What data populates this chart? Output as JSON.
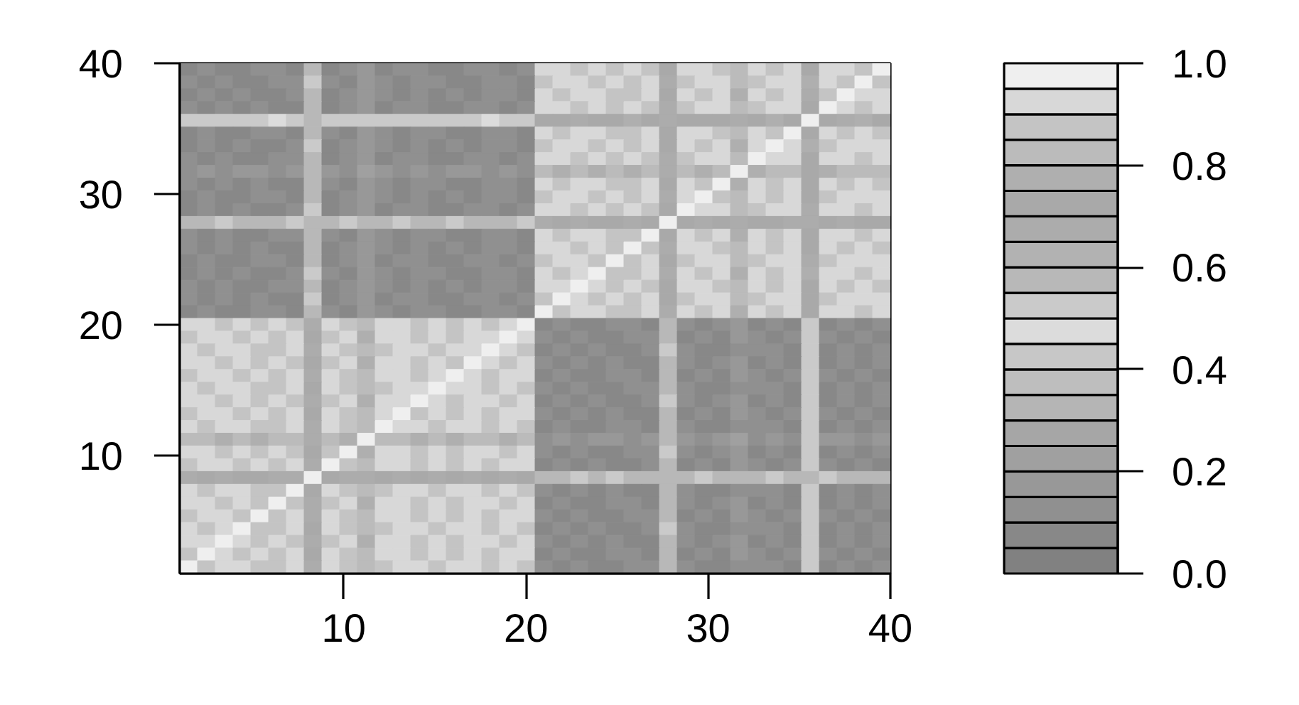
{
  "chart_data": {
    "type": "heatmap",
    "xlim": [
      1,
      40
    ],
    "ylim": [
      1,
      40
    ],
    "xticks": [
      10,
      20,
      30,
      40
    ],
    "yticks": [
      10,
      20,
      30,
      40
    ],
    "clim": [
      0,
      1
    ],
    "cticks": [
      {
        "value": 0,
        "label": "0.0"
      },
      0.2,
      0.4,
      0.6,
      0.8,
      {
        "value": 1,
        "label": "1.0"
      }
    ],
    "colors": [
      "#818181",
      "#888888",
      "#909090",
      "#989898",
      "#a0a0a0",
      "#a6a6a6",
      "#b5b5b5",
      "#bebebe",
      "#c7c7c7",
      "#dcdcdc",
      "#cacaca",
      "#b8b8b8",
      "#b2b2b2",
      "#acacac",
      "#a9a9a9",
      "#afafaf",
      "#bbbbbb",
      "#c4c4c4",
      "#d8d8d8",
      "#efefef"
    ],
    "cells": [
      [
        0.08,
        0.12,
        0.09,
        0.06,
        0.11,
        0.1,
        0.07,
        0.56,
        0.09,
        0.13,
        0.17,
        0.08,
        0.14,
        0.11,
        0.06,
        0.09,
        0.12,
        0.1,
        0.07,
        0.11,
        0.9,
        0.93,
        0.88,
        0.91,
        0.87,
        0.92,
        0.89,
        0.71,
        0.9,
        0.92,
        0.88,
        0.8,
        0.91,
        0.87,
        0.93,
        0.73,
        0.9,
        0.93,
        0.88,
        1
      ],
      [
        0.11,
        0.07,
        0.13,
        0.09,
        0.05,
        0.12,
        0.1,
        0.54,
        0.12,
        0.08,
        0.16,
        0.11,
        0.07,
        0.1,
        0.13,
        0.06,
        0.09,
        0.11,
        0.14,
        0.08,
        0.88,
        0.9,
        0.94,
        0.87,
        0.91,
        0.89,
        0.93,
        0.69,
        0.88,
        0.91,
        0.93,
        0.82,
        0.89,
        0.92,
        0.9,
        0.75,
        0.92,
        0.89,
        1,
        0.87
      ],
      [
        0.06,
        0.1,
        0.08,
        0.14,
        0.09,
        0.07,
        0.12,
        0.57,
        0.07,
        0.1,
        0.18,
        0.13,
        0.09,
        0.12,
        0.08,
        0.11,
        0.05,
        0.1,
        0.12,
        0.09,
        0.92,
        0.87,
        0.9,
        0.93,
        0.89,
        0.86,
        0.91,
        0.72,
        0.92,
        0.87,
        0.9,
        0.79,
        0.93,
        0.88,
        0.91,
        0.7,
        0.88,
        1,
        0.9,
        0.93
      ],
      [
        0.13,
        0.09,
        0.11,
        0.07,
        0.1,
        0.06,
        0.09,
        0.55,
        0.09,
        0.13,
        0.17,
        0.08,
        0.14,
        0.11,
        0.06,
        0.09,
        0.12,
        0.1,
        0.07,
        0.11,
        0.9,
        0.93,
        0.88,
        0.91,
        0.87,
        0.92,
        0.89,
        0.7,
        0.88,
        0.91,
        0.93,
        0.82,
        0.89,
        0.92,
        0.9,
        0.74,
        1,
        0.93,
        0.88,
        0.91
      ],
      [
        0.52,
        0.5,
        0.54,
        0.51,
        0.53,
        0.49,
        0.52,
        0.55,
        0.51,
        0.53,
        0.5,
        0.52,
        0.54,
        0.5,
        0.51,
        0.53,
        0.52,
        0.49,
        0.51,
        0.53,
        0.72,
        0.74,
        0.7,
        0.73,
        0.71,
        0.75,
        0.72,
        0.7,
        0.73,
        0.71,
        0.74,
        0.7,
        0.72,
        0.75,
        0.71,
        1,
        0.74,
        0.7,
        0.75,
        0.73
      ],
      [
        0.08,
        0.12,
        0.09,
        0.06,
        0.11,
        0.1,
        0.07,
        0.58,
        0.12,
        0.08,
        0.16,
        0.11,
        0.07,
        0.1,
        0.13,
        0.06,
        0.09,
        0.11,
        0.14,
        0.08,
        0.92,
        0.87,
        0.9,
        0.93,
        0.89,
        0.86,
        0.91,
        0.71,
        0.9,
        0.92,
        0.88,
        0.8,
        0.91,
        0.87,
        1,
        0.72,
        0.92,
        0.89,
        0.91,
        0.87
      ],
      [
        0.06,
        0.1,
        0.08,
        0.14,
        0.09,
        0.07,
        0.12,
        0.53,
        0.07,
        0.1,
        0.18,
        0.13,
        0.09,
        0.12,
        0.08,
        0.11,
        0.05,
        0.1,
        0.12,
        0.09,
        0.88,
        0.9,
        0.94,
        0.87,
        0.91,
        0.89,
        0.93,
        0.73,
        0.92,
        0.87,
        0.9,
        0.79,
        0.93,
        1,
        0.91,
        0.75,
        0.88,
        0.91,
        0.9,
        0.93
      ],
      [
        0.11,
        0.07,
        0.13,
        0.09,
        0.05,
        0.12,
        0.1,
        0.56,
        0.09,
        0.13,
        0.17,
        0.08,
        0.14,
        0.11,
        0.06,
        0.09,
        0.12,
        0.1,
        0.07,
        0.11,
        0.9,
        0.93,
        0.88,
        0.91,
        0.87,
        0.92,
        0.89,
        0.68,
        0.88,
        0.91,
        0.93,
        0.82,
        1,
        0.92,
        0.9,
        0.71,
        0.9,
        0.93,
        0.88,
        0.91
      ],
      [
        0.15,
        0.18,
        0.14,
        0.17,
        0.16,
        0.13,
        0.18,
        0.55,
        0.16,
        0.14,
        0.2,
        0.17,
        0.15,
        0.18,
        0.13,
        0.16,
        0.17,
        0.14,
        0.19,
        0.15,
        0.8,
        0.78,
        0.82,
        0.79,
        0.81,
        0.77,
        0.8,
        0.7,
        0.81,
        0.79,
        0.8,
        1,
        0.78,
        0.82,
        0.8,
        0.71,
        0.79,
        0.81,
        0.8,
        0.82
      ],
      [
        0.13,
        0.09,
        0.11,
        0.07,
        0.1,
        0.06,
        0.09,
        0.55,
        0.12,
        0.08,
        0.16,
        0.11,
        0.07,
        0.1,
        0.13,
        0.06,
        0.09,
        0.11,
        0.14,
        0.08,
        0.92,
        0.87,
        0.9,
        0.93,
        0.89,
        0.86,
        0.91,
        0.72,
        0.92,
        0.87,
        1,
        0.79,
        0.93,
        0.88,
        0.91,
        0.73,
        0.92,
        0.89,
        0.91,
        0.87
      ],
      [
        0.08,
        0.12,
        0.09,
        0.06,
        0.11,
        0.1,
        0.07,
        0.57,
        0.07,
        0.1,
        0.18,
        0.13,
        0.09,
        0.12,
        0.08,
        0.11,
        0.05,
        0.1,
        0.12,
        0.09,
        0.88,
        0.9,
        0.94,
        0.87,
        0.91,
        0.89,
        0.93,
        0.7,
        0.9,
        1,
        0.88,
        0.8,
        0.91,
        0.87,
        0.93,
        0.74,
        0.88,
        0.91,
        0.9,
        0.93
      ],
      [
        0.06,
        0.1,
        0.08,
        0.14,
        0.09,
        0.07,
        0.12,
        0.54,
        0.09,
        0.13,
        0.17,
        0.08,
        0.14,
        0.11,
        0.06,
        0.09,
        0.12,
        0.1,
        0.07,
        0.11,
        0.9,
        0.93,
        0.88,
        0.91,
        0.87,
        0.92,
        0.89,
        0.71,
        1,
        0.91,
        0.93,
        0.82,
        0.89,
        0.92,
        0.9,
        0.7,
        0.9,
        0.93,
        0.88,
        0.91
      ],
      [
        0.55,
        0.57,
        0.54,
        0.56,
        0.58,
        0.55,
        0.53,
        0.6,
        0.56,
        0.54,
        0.57,
        0.55,
        0.53,
        0.58,
        0.56,
        0.54,
        0.57,
        0.55,
        0.56,
        0.54,
        0.7,
        0.72,
        0.69,
        0.71,
        0.73,
        0.7,
        0.72,
        1,
        0.71,
        0.69,
        0.72,
        0.7,
        0.73,
        0.71,
        0.7,
        0.7,
        0.72,
        0.7,
        0.71,
        0.73
      ],
      [
        0.11,
        0.07,
        0.13,
        0.09,
        0.05,
        0.12,
        0.1,
        0.56,
        0.12,
        0.08,
        0.16,
        0.11,
        0.07,
        0.1,
        0.13,
        0.06,
        0.09,
        0.11,
        0.14,
        0.08,
        0.92,
        0.87,
        0.9,
        0.93,
        0.89,
        0.86,
        1,
        0.72,
        0.92,
        0.87,
        0.9,
        0.79,
        0.93,
        0.88,
        0.91,
        0.72,
        0.9,
        0.93,
        0.88,
        0.91
      ],
      [
        0.13,
        0.09,
        0.11,
        0.07,
        0.1,
        0.06,
        0.09,
        0.58,
        0.07,
        0.1,
        0.18,
        0.13,
        0.09,
        0.12,
        0.08,
        0.11,
        0.05,
        0.1,
        0.12,
        0.09,
        0.9,
        0.93,
        0.88,
        0.91,
        0.87,
        1,
        0.89,
        0.69,
        0.9,
        0.92,
        0.88,
        0.8,
        0.91,
        0.87,
        0.93,
        0.74,
        0.92,
        0.89,
        0.91,
        0.87
      ],
      [
        0.08,
        0.12,
        0.09,
        0.06,
        0.11,
        0.1,
        0.07,
        0.55,
        0.09,
        0.13,
        0.17,
        0.08,
        0.14,
        0.11,
        0.06,
        0.09,
        0.12,
        0.1,
        0.07,
        0.11,
        0.88,
        0.9,
        0.94,
        0.87,
        1,
        0.89,
        0.93,
        0.73,
        0.88,
        0.91,
        0.93,
        0.82,
        0.89,
        0.92,
        0.9,
        0.7,
        0.88,
        0.91,
        0.9,
        0.93
      ],
      [
        0.06,
        0.1,
        0.08,
        0.14,
        0.09,
        0.07,
        0.12,
        0.53,
        0.12,
        0.08,
        0.16,
        0.11,
        0.07,
        0.1,
        0.13,
        0.06,
        0.09,
        0.11,
        0.14,
        0.08,
        0.92,
        0.87,
        0.9,
        1,
        0.89,
        0.86,
        0.91,
        0.7,
        0.92,
        0.87,
        0.9,
        0.79,
        0.93,
        0.88,
        0.91,
        0.75,
        0.9,
        0.93,
        0.88,
        0.91
      ],
      [
        0.11,
        0.07,
        0.13,
        0.09,
        0.05,
        0.12,
        0.1,
        0.57,
        0.07,
        0.1,
        0.18,
        0.13,
        0.09,
        0.12,
        0.08,
        0.11,
        0.05,
        0.1,
        0.12,
        0.09,
        0.9,
        0.93,
        1,
        0.91,
        0.87,
        0.92,
        0.89,
        0.71,
        0.9,
        0.92,
        0.88,
        0.8,
        0.91,
        0.87,
        0.93,
        0.72,
        0.92,
        0.89,
        0.91,
        0.87
      ],
      [
        0.13,
        0.09,
        0.11,
        0.07,
        0.1,
        0.06,
        0.09,
        0.54,
        0.09,
        0.13,
        0.17,
        0.08,
        0.14,
        0.11,
        0.06,
        0.09,
        0.12,
        0.1,
        0.07,
        0.11,
        0.88,
        1,
        0.94,
        0.87,
        0.91,
        0.89,
        0.93,
        0.72,
        0.88,
        0.91,
        0.93,
        0.82,
        0.89,
        0.92,
        0.9,
        0.73,
        0.88,
        0.91,
        0.9,
        0.93
      ],
      [
        0.08,
        0.12,
        0.09,
        0.06,
        0.11,
        0.1,
        0.07,
        0.56,
        0.12,
        0.08,
        0.16,
        0.11,
        0.07,
        0.1,
        0.13,
        0.06,
        0.09,
        0.11,
        0.14,
        0.08,
        1,
        0.87,
        0.9,
        0.93,
        0.89,
        0.86,
        0.91,
        0.7,
        0.92,
        0.87,
        0.9,
        0.79,
        0.93,
        0.88,
        0.91,
        0.71,
        0.9,
        0.93,
        0.88,
        0.91
      ],
      [
        0.9,
        0.93,
        0.88,
        0.91,
        0.87,
        0.92,
        0.89,
        0.7,
        0.91,
        0.88,
        0.81,
        0.93,
        0.9,
        0.87,
        0.92,
        0.89,
        0.94,
        0.88,
        0.9,
        1,
        0.08,
        0.12,
        0.09,
        0.06,
        0.11,
        0.1,
        0.07,
        0.55,
        0.1,
        0.07,
        0.12,
        0.16,
        0.09,
        0.11,
        0.08,
        0.52,
        0.09,
        0.12,
        0.07,
        0.1
      ],
      [
        0.88,
        0.9,
        0.94,
        0.87,
        0.91,
        0.89,
        0.93,
        0.72,
        0.87,
        0.92,
        0.79,
        0.9,
        0.93,
        0.88,
        0.91,
        0.86,
        0.9,
        0.92,
        1,
        0.93,
        0.11,
        0.07,
        0.13,
        0.09,
        0.05,
        0.12,
        0.1,
        0.57,
        0.08,
        0.13,
        0.09,
        0.18,
        0.11,
        0.06,
        0.1,
        0.5,
        0.11,
        0.08,
        0.13,
        0.06
      ],
      [
        0.92,
        0.87,
        0.9,
        0.93,
        0.89,
        0.86,
        0.91,
        0.68,
        0.93,
        0.89,
        0.82,
        0.88,
        0.91,
        0.94,
        0.87,
        0.9,
        0.92,
        1,
        0.91,
        0.87,
        0.06,
        0.1,
        0.08,
        0.14,
        0.09,
        0.07,
        0.12,
        0.54,
        0.12,
        0.09,
        0.06,
        0.15,
        0.1,
        0.13,
        0.09,
        0.53,
        0.07,
        0.1,
        0.09,
        0.12
      ],
      [
        0.9,
        0.93,
        0.88,
        0.91,
        0.87,
        0.92,
        0.89,
        0.71,
        0.87,
        0.92,
        0.79,
        0.9,
        0.93,
        0.88,
        0.91,
        0.86,
        1,
        0.92,
        0.89,
        0.93,
        0.13,
        0.09,
        0.11,
        0.07,
        0.1,
        0.06,
        0.09,
        0.56,
        0.1,
        0.07,
        0.12,
        0.16,
        0.09,
        0.11,
        0.08,
        0.51,
        0.09,
        0.12,
        0.07,
        0.1
      ],
      [
        0.88,
        0.9,
        0.94,
        0.87,
        0.91,
        0.89,
        0.93,
        0.69,
        0.91,
        0.88,
        0.81,
        0.93,
        0.9,
        0.87,
        0.92,
        1,
        0.94,
        0.88,
        0.9,
        0.91,
        0.08,
        0.12,
        0.09,
        0.06,
        0.11,
        0.1,
        0.07,
        0.58,
        0.08,
        0.13,
        0.09,
        0.18,
        0.11,
        0.06,
        0.1,
        0.54,
        0.11,
        0.08,
        0.13,
        0.06
      ],
      [
        0.92,
        0.87,
        0.9,
        0.93,
        0.89,
        0.86,
        0.91,
        0.73,
        0.93,
        0.89,
        0.82,
        0.88,
        0.91,
        0.94,
        1,
        0.9,
        0.92,
        0.88,
        0.91,
        0.87,
        0.11,
        0.07,
        0.13,
        0.09,
        0.05,
        0.12,
        0.1,
        0.55,
        0.12,
        0.09,
        0.06,
        0.15,
        0.1,
        0.13,
        0.09,
        0.52,
        0.07,
        0.1,
        0.09,
        0.12
      ],
      [
        0.9,
        0.93,
        0.88,
        0.91,
        0.87,
        0.92,
        0.89,
        0.7,
        0.87,
        0.92,
        0.79,
        0.9,
        0.93,
        1,
        0.91,
        0.86,
        0.9,
        0.92,
        0.89,
        0.93,
        0.06,
        0.1,
        0.08,
        0.14,
        0.09,
        0.07,
        0.12,
        0.53,
        0.1,
        0.07,
        0.12,
        0.16,
        0.09,
        0.11,
        0.08,
        0.5,
        0.09,
        0.12,
        0.07,
        0.1
      ],
      [
        0.88,
        0.9,
        0.94,
        0.87,
        0.91,
        0.89,
        0.93,
        0.72,
        0.91,
        0.88,
        0.81,
        0.93,
        1,
        0.87,
        0.92,
        0.89,
        0.94,
        0.88,
        0.9,
        0.91,
        0.13,
        0.09,
        0.11,
        0.07,
        0.1,
        0.06,
        0.09,
        0.57,
        0.08,
        0.13,
        0.09,
        0.18,
        0.11,
        0.06,
        0.1,
        0.53,
        0.11,
        0.08,
        0.13,
        0.06
      ],
      [
        0.92,
        0.87,
        0.9,
        0.93,
        0.89,
        0.86,
        0.91,
        0.68,
        0.93,
        0.89,
        0.82,
        1,
        0.91,
        0.94,
        0.87,
        0.9,
        0.92,
        0.88,
        0.91,
        0.87,
        0.08,
        0.12,
        0.09,
        0.06,
        0.11,
        0.1,
        0.07,
        0.56,
        0.12,
        0.09,
        0.06,
        0.15,
        0.1,
        0.13,
        0.09,
        0.51,
        0.07,
        0.1,
        0.09,
        0.12
      ],
      [
        0.8,
        0.82,
        0.79,
        0.81,
        0.78,
        0.8,
        0.82,
        0.67,
        0.81,
        0.79,
        1,
        0.8,
        0.82,
        0.78,
        0.81,
        0.79,
        0.8,
        0.82,
        0.78,
        0.81,
        0.15,
        0.17,
        0.14,
        0.18,
        0.16,
        0.13,
        0.17,
        0.55,
        0.16,
        0.14,
        0.18,
        0.2,
        0.15,
        0.17,
        0.13,
        0.5,
        0.16,
        0.18,
        0.14,
        0.17
      ],
      [
        0.9,
        0.93,
        0.88,
        0.91,
        0.87,
        0.92,
        0.89,
        0.71,
        0.87,
        1,
        0.79,
        0.9,
        0.93,
        0.88,
        0.91,
        0.86,
        0.9,
        0.92,
        0.89,
        0.93,
        0.11,
        0.07,
        0.13,
        0.09,
        0.05,
        0.12,
        0.1,
        0.54,
        0.1,
        0.07,
        0.12,
        0.16,
        0.09,
        0.11,
        0.08,
        0.52,
        0.09,
        0.12,
        0.07,
        0.1
      ],
      [
        0.88,
        0.9,
        0.94,
        0.87,
        0.91,
        0.89,
        0.93,
        0.7,
        1,
        0.88,
        0.81,
        0.93,
        0.9,
        0.87,
        0.92,
        0.89,
        0.94,
        0.88,
        0.9,
        0.91,
        0.06,
        0.1,
        0.08,
        0.14,
        0.09,
        0.07,
        0.12,
        0.58,
        0.08,
        0.13,
        0.09,
        0.18,
        0.11,
        0.06,
        0.1,
        0.54,
        0.11,
        0.08,
        0.13,
        0.06
      ],
      [
        0.7,
        0.72,
        0.69,
        0.71,
        0.73,
        0.7,
        0.68,
        1,
        0.72,
        0.7,
        0.67,
        0.71,
        0.69,
        0.73,
        0.7,
        0.72,
        0.68,
        0.71,
        0.7,
        0.72,
        0.55,
        0.57,
        0.54,
        0.56,
        0.53,
        0.58,
        0.55,
        0.6,
        0.56,
        0.54,
        0.57,
        0.55,
        0.58,
        0.53,
        0.56,
        0.55,
        0.54,
        0.57,
        0.55,
        0.56
      ],
      [
        0.92,
        0.87,
        0.9,
        0.93,
        0.89,
        0.86,
        1,
        0.73,
        0.93,
        0.89,
        0.82,
        0.88,
        0.91,
        0.94,
        0.87,
        0.9,
        0.92,
        0.88,
        0.91,
        0.87,
        0.13,
        0.09,
        0.11,
        0.07,
        0.1,
        0.06,
        0.09,
        0.55,
        0.12,
        0.09,
        0.06,
        0.15,
        0.1,
        0.13,
        0.09,
        0.5,
        0.07,
        0.1,
        0.09,
        0.12
      ],
      [
        0.9,
        0.93,
        0.88,
        0.91,
        0.87,
        1,
        0.89,
        0.69,
        0.87,
        0.92,
        0.79,
        0.9,
        0.93,
        0.88,
        0.91,
        0.86,
        0.9,
        0.92,
        0.89,
        0.93,
        0.08,
        0.12,
        0.09,
        0.06,
        0.11,
        0.1,
        0.07,
        0.57,
        0.1,
        0.07,
        0.12,
        0.16,
        0.09,
        0.11,
        0.08,
        0.53,
        0.09,
        0.12,
        0.07,
        0.1
      ],
      [
        0.88,
        0.9,
        0.94,
        0.87,
        1,
        0.89,
        0.93,
        0.7,
        0.91,
        0.88,
        0.81,
        0.93,
        0.9,
        0.87,
        0.92,
        0.89,
        0.94,
        0.88,
        0.9,
        0.91,
        0.11,
        0.07,
        0.13,
        0.09,
        0.05,
        0.12,
        0.1,
        0.56,
        0.08,
        0.13,
        0.09,
        0.18,
        0.11,
        0.06,
        0.1,
        0.51,
        0.11,
        0.08,
        0.13,
        0.06
      ],
      [
        0.92,
        0.87,
        0.9,
        1,
        0.89,
        0.86,
        0.91,
        0.72,
        0.93,
        0.89,
        0.82,
        0.88,
        0.91,
        0.94,
        0.87,
        0.9,
        0.92,
        0.88,
        0.91,
        0.87,
        0.06,
        0.1,
        0.08,
        0.14,
        0.09,
        0.07,
        0.12,
        0.54,
        0.12,
        0.09,
        0.06,
        0.15,
        0.1,
        0.13,
        0.09,
        0.52,
        0.07,
        0.1,
        0.09,
        0.12
      ],
      [
        0.9,
        0.93,
        1,
        0.91,
        0.87,
        0.92,
        0.89,
        0.68,
        0.87,
        0.92,
        0.79,
        0.9,
        0.93,
        0.88,
        0.91,
        0.86,
        0.9,
        0.92,
        0.89,
        0.93,
        0.13,
        0.09,
        0.11,
        0.07,
        0.1,
        0.06,
        0.09,
        0.55,
        0.1,
        0.07,
        0.12,
        0.16,
        0.09,
        0.11,
        0.08,
        0.54,
        0.09,
        0.12,
        0.07,
        0.1
      ],
      [
        0.88,
        1,
        0.94,
        0.87,
        0.91,
        0.89,
        0.93,
        0.71,
        0.91,
        0.88,
        0.81,
        0.93,
        0.9,
        0.87,
        0.92,
        0.89,
        0.94,
        0.88,
        0.9,
        0.91,
        0.08,
        0.12,
        0.09,
        0.06,
        0.11,
        0.1,
        0.07,
        0.58,
        0.08,
        0.13,
        0.09,
        0.18,
        0.11,
        0.06,
        0.1,
        0.5,
        0.11,
        0.08,
        0.13,
        0.06
      ],
      [
        1,
        0.87,
        0.9,
        0.93,
        0.89,
        0.86,
        0.91,
        0.7,
        0.93,
        0.89,
        0.82,
        0.88,
        0.91,
        0.94,
        0.87,
        0.9,
        0.92,
        0.88,
        0.91,
        0.87,
        0.11,
        0.07,
        0.13,
        0.09,
        0.05,
        0.12,
        0.1,
        0.56,
        0.12,
        0.09,
        0.06,
        0.15,
        0.1,
        0.13,
        0.09,
        0.53,
        0.07,
        0.1,
        0.09,
        0.12
      ]
    ]
  }
}
